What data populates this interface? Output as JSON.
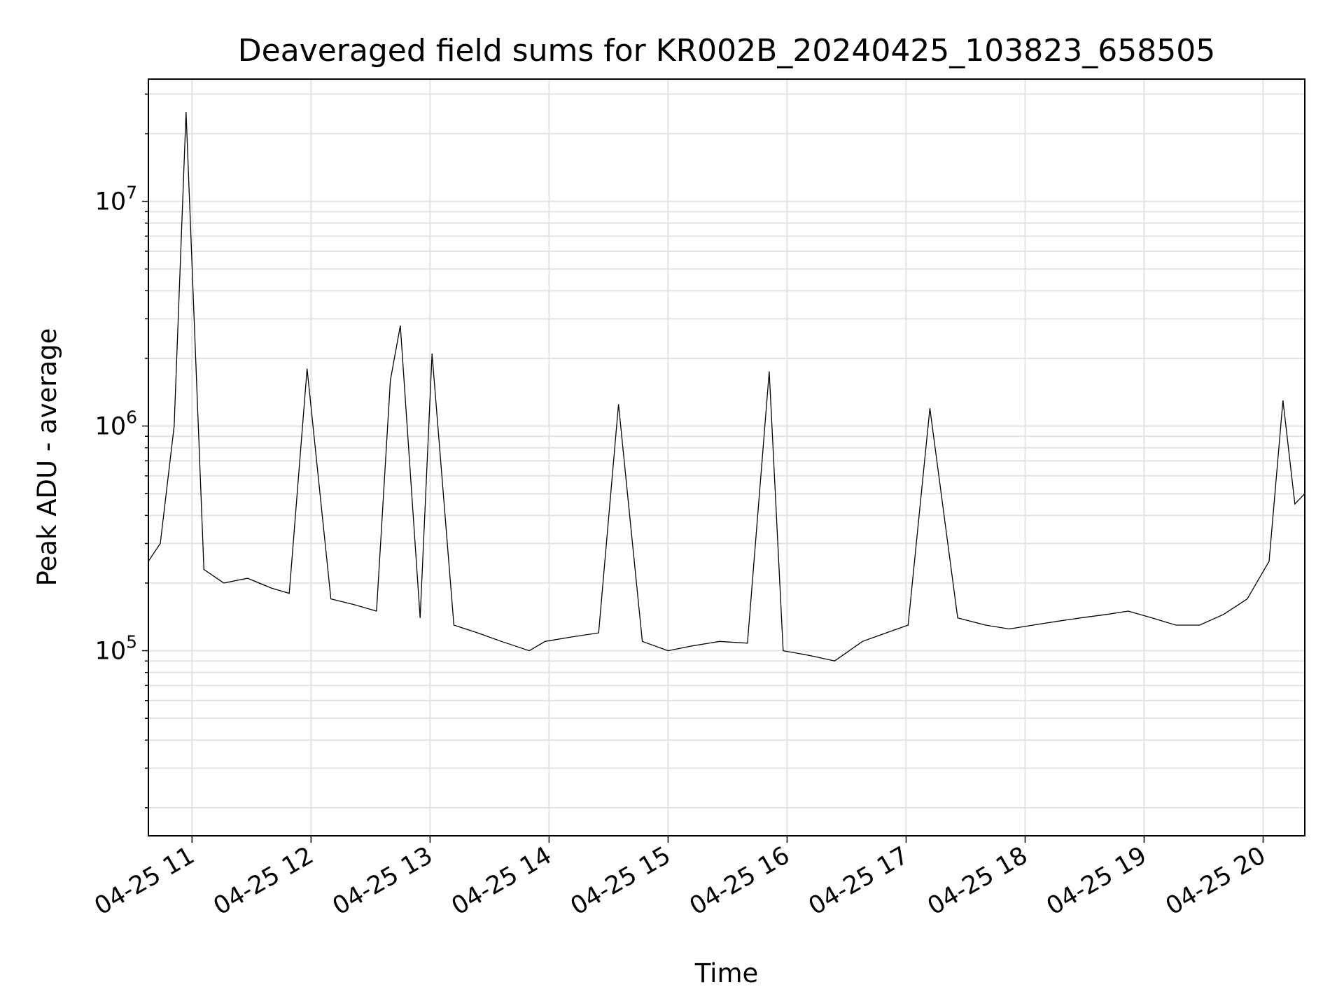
{
  "chart_data": {
    "type": "line",
    "title": "Deaveraged field sums for KR002B_20240425_103823_658505",
    "xlabel": "Time",
    "ylabel": "Peak ADU - average",
    "yscale": "log",
    "ylim": [
      15000,
      35000000
    ],
    "xlim": [
      "2024-04-25 10:38",
      "2024-04-25 20:21"
    ],
    "grid": true,
    "line_color": "#000000",
    "x_ticks": [
      {
        "value": "2024-04-25 11:00",
        "label": "04-25 11"
      },
      {
        "value": "2024-04-25 12:00",
        "label": "04-25 12"
      },
      {
        "value": "2024-04-25 13:00",
        "label": "04-25 13"
      },
      {
        "value": "2024-04-25 14:00",
        "label": "04-25 14"
      },
      {
        "value": "2024-04-25 15:00",
        "label": "04-25 15"
      },
      {
        "value": "2024-04-25 16:00",
        "label": "04-25 16"
      },
      {
        "value": "2024-04-25 17:00",
        "label": "04-25 17"
      },
      {
        "value": "2024-04-25 18:00",
        "label": "04-25 18"
      },
      {
        "value": "2024-04-25 19:00",
        "label": "04-25 19"
      },
      {
        "value": "2024-04-25 20:00",
        "label": "04-25 20"
      }
    ],
    "y_ticks": [
      {
        "value": 100000,
        "base": "10",
        "exp": "5"
      },
      {
        "value": 1000000,
        "base": "10",
        "exp": "6"
      },
      {
        "value": 10000000,
        "base": "10",
        "exp": "7"
      }
    ],
    "series": [
      {
        "x": [
          "2024-04-25 10:38",
          "2024-04-25 10:44",
          "2024-04-25 10:51",
          "2024-04-25 10:57",
          "2024-04-25 11:06",
          "2024-04-25 11:16",
          "2024-04-25 11:28",
          "2024-04-25 11:40",
          "2024-04-25 11:49",
          "2024-04-25 11:58",
          "2024-04-25 12:10",
          "2024-04-25 12:22",
          "2024-04-25 12:33",
          "2024-04-25 12:40",
          "2024-04-25 12:45",
          "2024-04-25 12:55",
          "2024-04-25 13:01",
          "2024-04-25 13:12",
          "2024-04-25 13:24",
          "2024-04-25 13:36",
          "2024-04-25 13:50",
          "2024-04-25 13:58",
          "2024-04-25 14:11",
          "2024-04-25 14:25",
          "2024-04-25 14:35",
          "2024-04-25 14:47",
          "2024-04-25 15:00",
          "2024-04-25 15:12",
          "2024-04-25 15:26",
          "2024-04-25 15:40",
          "2024-04-25 15:51",
          "2024-04-25 15:58",
          "2024-04-25 16:12",
          "2024-04-25 16:24",
          "2024-04-25 16:38",
          "2024-04-25 16:50",
          "2024-04-25 17:01",
          "2024-04-25 17:12",
          "2024-04-25 17:26",
          "2024-04-25 17:40",
          "2024-04-25 17:52",
          "2024-04-25 18:04",
          "2024-04-25 18:16",
          "2024-04-25 18:28",
          "2024-04-25 18:41",
          "2024-04-25 18:52",
          "2024-04-25 19:04",
          "2024-04-25 19:16",
          "2024-04-25 19:28",
          "2024-04-25 19:40",
          "2024-04-25 19:52",
          "2024-04-25 20:03",
          "2024-04-25 20:10",
          "2024-04-25 20:16",
          "2024-04-25 20:21"
        ],
        "values": [
          250000,
          300000,
          1000000,
          25000000,
          230000,
          200000,
          210000,
          190000,
          180000,
          1800000,
          170000,
          160000,
          150000,
          1600000,
          2800000,
          140000,
          2100000,
          130000,
          120000,
          110000,
          100000,
          110000,
          115000,
          120000,
          1250000,
          110000,
          100000,
          105000,
          110000,
          108000,
          1750000,
          100000,
          95000,
          90000,
          110000,
          120000,
          130000,
          1200000,
          140000,
          130000,
          125000,
          130000,
          135000,
          140000,
          145000,
          150000,
          140000,
          130000,
          130000,
          145000,
          170000,
          250000,
          1300000,
          450000,
          500000
        ]
      }
    ]
  }
}
